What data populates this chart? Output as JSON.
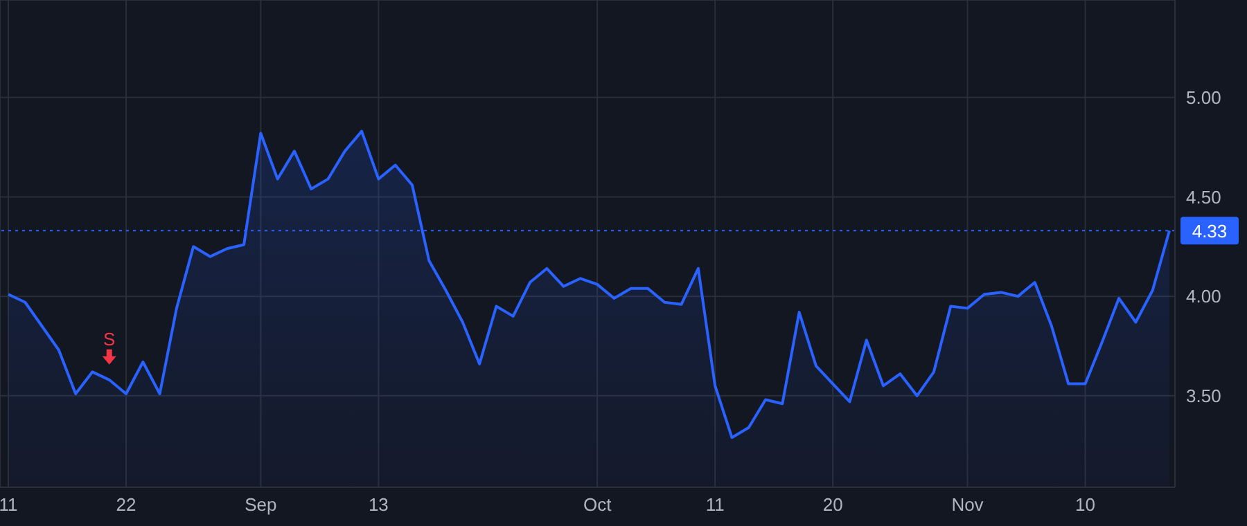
{
  "chart_data": {
    "type": "area",
    "categories": [
      "11",
      null,
      null,
      null,
      null,
      null,
      null,
      "22",
      null,
      null,
      null,
      null,
      null,
      null,
      null,
      "Sep",
      null,
      null,
      null,
      null,
      null,
      null,
      "13",
      null,
      null,
      null,
      null,
      null,
      null,
      null,
      null,
      null,
      null,
      null,
      null,
      "Oct",
      null,
      null,
      null,
      null,
      null,
      null,
      "11",
      null,
      null,
      null,
      null,
      null,
      null,
      "20",
      null,
      null,
      null,
      null,
      null,
      null,
      null,
      "Nov",
      null,
      null,
      null,
      null,
      null,
      null,
      "10",
      null,
      null,
      null,
      null,
      null
    ],
    "series": [
      {
        "color": "#2962ff",
        "values": [
          4.01,
          3.97,
          3.85,
          3.73,
          3.51,
          3.62,
          3.58,
          3.51,
          3.67,
          3.51,
          3.94,
          4.25,
          4.2,
          4.24,
          4.26,
          4.82,
          4.59,
          4.73,
          4.54,
          4.59,
          4.73,
          4.83,
          4.59,
          4.66,
          4.56,
          4.18,
          4.03,
          3.87,
          3.66,
          3.95,
          3.9,
          4.07,
          4.14,
          4.05,
          4.09,
          4.06,
          3.99,
          4.04,
          4.04,
          3.97,
          3.96,
          4.14,
          3.55,
          3.29,
          3.34,
          3.48,
          3.46,
          3.92,
          3.65,
          3.56,
          3.47,
          3.78,
          3.55,
          3.61,
          3.5,
          3.62,
          3.95,
          3.94,
          4.01,
          4.02,
          4.0,
          4.07,
          3.85,
          3.56,
          3.56,
          3.77,
          3.99,
          3.87,
          4.03,
          4.33
        ]
      }
    ],
    "ylim": [
      3.04,
      5.49
    ],
    "yticks": [
      {
        "value": 3.5,
        "label": "3.50"
      },
      {
        "value": 4,
        "label": "4.00"
      },
      {
        "value": 4.5,
        "label": "4.50"
      },
      {
        "value": 5,
        "label": "5.00"
      }
    ],
    "ref_lines": [
      {
        "axis": "y",
        "value": 4.33,
        "label": "4.33",
        "color": "#2962ff",
        "line_style": "dotted"
      }
    ],
    "annotations": [
      {
        "text": "S",
        "y": 3.58
      }
    ],
    "grid": true,
    "legend": false,
    "marker": "none",
    "line_style": "solid"
  }
}
